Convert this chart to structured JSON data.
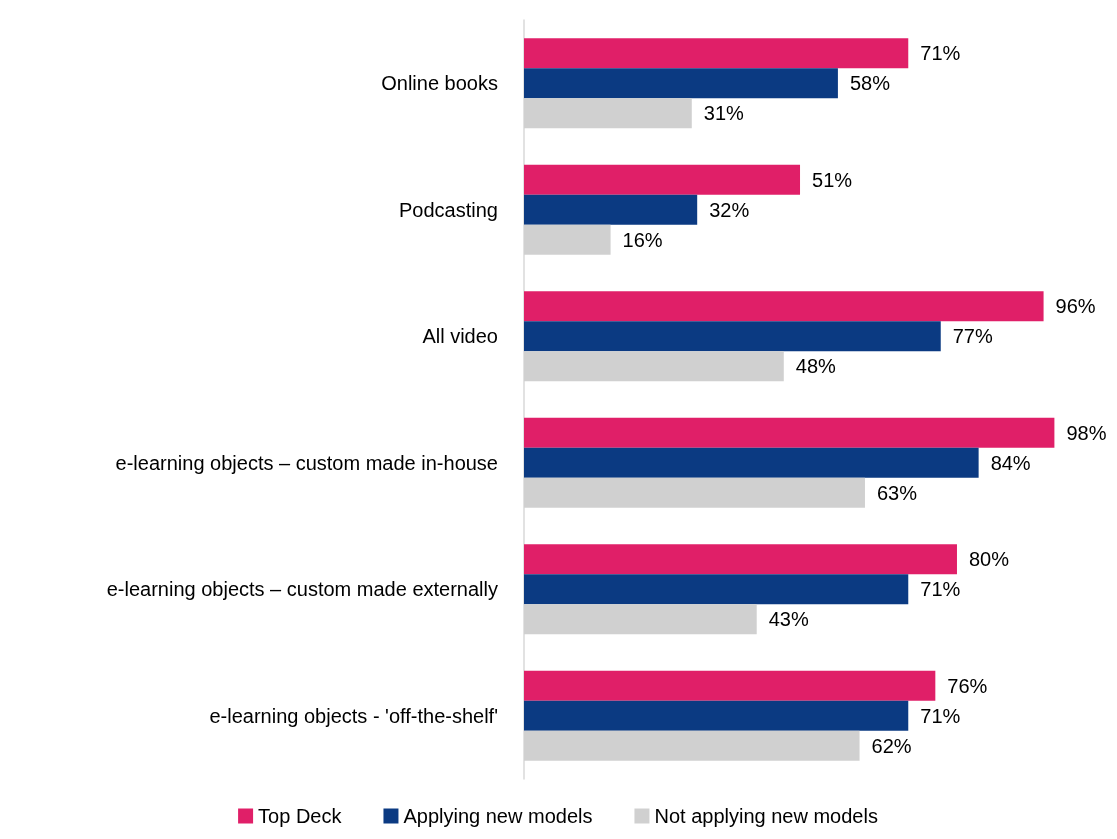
{
  "chart_data": {
    "type": "bar",
    "orientation": "horizontal",
    "categories": [
      "Online books",
      "Podcasting",
      "All video",
      "e-learning objects – custom made in-house",
      "e-learning objects – custom made externally",
      "e-learning objects - 'off-the-shelf'"
    ],
    "series": [
      {
        "name": "Top Deck",
        "color": "#e01f68",
        "values": [
          71,
          51,
          96,
          98,
          80,
          76
        ],
        "value_labels": [
          "71%",
          "51%",
          "96%",
          "98%",
          "80%",
          "76%"
        ]
      },
      {
        "name": "Applying new models",
        "color": "#0b3a82",
        "values": [
          58,
          32,
          77,
          84,
          71,
          71
        ],
        "value_labels": [
          "58%",
          "32%",
          "77%",
          "84%",
          "71%",
          "71%"
        ]
      },
      {
        "name": "Not applying new models",
        "color": "#d0d0d0",
        "values": [
          31,
          16,
          48,
          63,
          43,
          62
        ],
        "value_labels": [
          "31%",
          "16%",
          "48%",
          "63%",
          "43%",
          "62%"
        ]
      }
    ],
    "legend": "bottom"
  }
}
